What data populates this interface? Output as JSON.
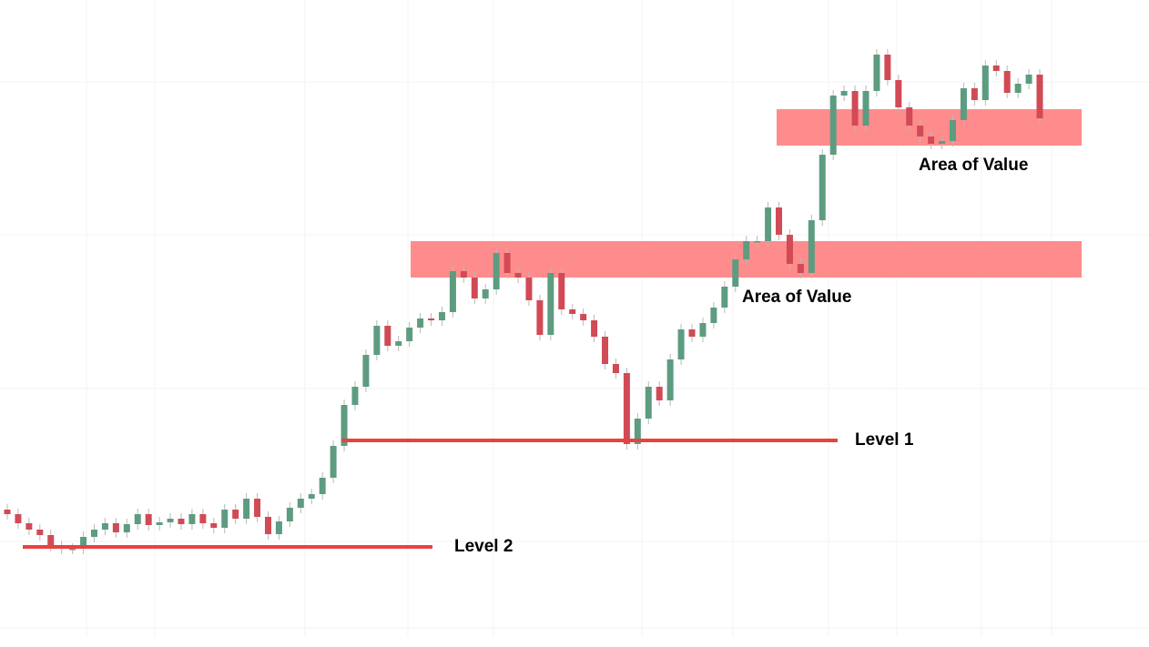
{
  "chart_data": {
    "type": "candlestick",
    "ylim": [
      0,
      700
    ],
    "colors": {
      "up": "#5d9c80",
      "down": "#d14a55",
      "zone": "#ff8080",
      "level": "#e8423f"
    },
    "open": [
      140,
      135,
      125,
      118,
      112,
      100,
      97,
      97,
      110,
      118,
      125,
      115,
      124,
      135,
      123,
      126,
      130,
      124,
      135,
      125,
      120,
      140,
      130,
      152,
      132,
      113,
      127,
      142,
      152,
      157,
      175,
      210,
      255,
      275,
      310,
      342,
      320,
      325,
      340,
      350,
      348,
      357,
      402,
      395,
      372,
      382,
      422,
      400,
      395,
      370,
      332,
      400,
      360,
      355,
      348,
      330,
      300,
      290,
      212,
      240,
      275,
      260,
      305,
      338,
      330,
      345,
      362,
      385,
      415,
      435,
      435,
      472,
      442,
      410,
      400,
      458,
      530,
      595,
      600,
      562,
      600,
      640,
      612,
      582,
      562,
      550,
      542,
      545,
      568,
      603,
      590,
      628,
      622,
      598,
      608,
      618
    ],
    "high": [
      146,
      141,
      131,
      124,
      118,
      106,
      103,
      116,
      124,
      131,
      131,
      130,
      141,
      141,
      132,
      136,
      136,
      141,
      141,
      131,
      146,
      146,
      158,
      158,
      138,
      133,
      148,
      158,
      163,
      181,
      216,
      261,
      281,
      316,
      348,
      348,
      331,
      346,
      356,
      356,
      363,
      408,
      408,
      401,
      388,
      428,
      428,
      406,
      401,
      376,
      406,
      406,
      366,
      361,
      354,
      336,
      306,
      296,
      246,
      281,
      281,
      311,
      344,
      344,
      351,
      368,
      391,
      421,
      441,
      441,
      478,
      478,
      448,
      416,
      464,
      536,
      601,
      606,
      606,
      606,
      646,
      646,
      618,
      588,
      568,
      556,
      551,
      574,
      609,
      609,
      634,
      634,
      628,
      614,
      624,
      624
    ],
    "low": [
      129,
      119,
      112,
      106,
      94,
      91,
      91,
      91,
      104,
      112,
      109,
      109,
      118,
      117,
      117,
      120,
      118,
      118,
      119,
      114,
      114,
      124,
      124,
      126,
      107,
      107,
      121,
      136,
      146,
      151,
      169,
      204,
      249,
      269,
      304,
      314,
      314,
      319,
      334,
      342,
      342,
      351,
      389,
      366,
      366,
      376,
      394,
      389,
      364,
      326,
      326,
      354,
      349,
      342,
      324,
      294,
      284,
      206,
      206,
      234,
      254,
      254,
      299,
      324,
      324,
      339,
      356,
      379,
      409,
      429,
      429,
      436,
      404,
      394,
      394,
      452,
      524,
      589,
      556,
      556,
      594,
      606,
      576,
      556,
      544,
      536,
      536,
      539,
      562,
      584,
      584,
      616,
      592,
      592,
      602,
      564
    ],
    "close": [
      135,
      125,
      118,
      112,
      100,
      97,
      97,
      110,
      118,
      125,
      115,
      124,
      135,
      123,
      126,
      130,
      124,
      135,
      125,
      120,
      140,
      130,
      152,
      132,
      113,
      127,
      142,
      152,
      157,
      175,
      210,
      255,
      275,
      310,
      342,
      320,
      325,
      340,
      350,
      348,
      357,
      402,
      395,
      372,
      382,
      422,
      400,
      395,
      370,
      332,
      400,
      360,
      355,
      348,
      330,
      300,
      290,
      212,
      240,
      275,
      260,
      305,
      338,
      330,
      345,
      362,
      385,
      415,
      435,
      435,
      472,
      442,
      410,
      400,
      458,
      530,
      595,
      600,
      562,
      600,
      640,
      612,
      582,
      562,
      550,
      542,
      545,
      568,
      603,
      590,
      628,
      622,
      598,
      608,
      618,
      570
    ],
    "levels": [
      {
        "label": "Level 1",
        "value": 216
      },
      {
        "label": "Level 2",
        "value": 99
      }
    ],
    "zones": [
      {
        "label": "Area of Value",
        "low": 395,
        "high": 435
      },
      {
        "label": "Area of Value",
        "low": 540,
        "high": 580
      }
    ]
  }
}
